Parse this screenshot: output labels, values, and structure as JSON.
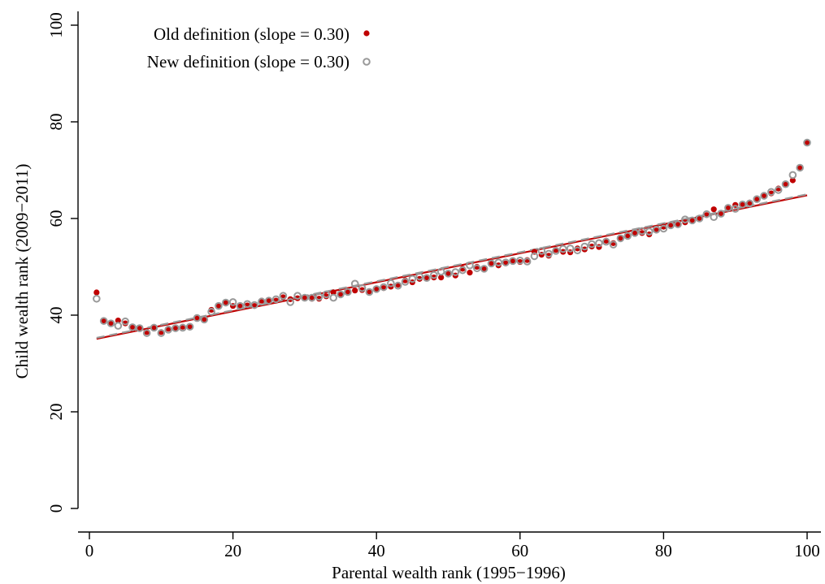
{
  "chart_data": {
    "type": "scatter",
    "title": "",
    "xlabel": "Parental wealth rank (1995−1996)",
    "ylabel": "Child wealth rank (2009−2011)",
    "xlim": [
      0,
      100
    ],
    "ylim": [
      0,
      100
    ],
    "xticks": [
      0,
      20,
      40,
      60,
      80,
      100
    ],
    "yticks": [
      0,
      20,
      40,
      60,
      80,
      100
    ],
    "xtick_labels": [
      "0",
      "20",
      "40",
      "60",
      "80",
      "100"
    ],
    "ytick_labels": [
      "0",
      "20",
      "40",
      "60",
      "80",
      "100"
    ],
    "grid": false,
    "legend_position": "top-left",
    "x": [
      1,
      2,
      3,
      4,
      5,
      6,
      7,
      8,
      9,
      10,
      11,
      12,
      13,
      14,
      15,
      16,
      17,
      18,
      19,
      20,
      21,
      22,
      23,
      24,
      25,
      26,
      27,
      28,
      29,
      30,
      31,
      32,
      33,
      34,
      35,
      36,
      37,
      38,
      39,
      40,
      41,
      42,
      43,
      44,
      45,
      46,
      47,
      48,
      49,
      50,
      51,
      52,
      53,
      54,
      55,
      56,
      57,
      58,
      59,
      60,
      61,
      62,
      63,
      64,
      65,
      66,
      67,
      68,
      69,
      70,
      71,
      72,
      73,
      74,
      75,
      76,
      77,
      78,
      79,
      80,
      81,
      82,
      83,
      84,
      85,
      86,
      87,
      88,
      89,
      90,
      91,
      92,
      93,
      94,
      95,
      96,
      97,
      98,
      99,
      100
    ],
    "series": [
      {
        "name": "Old definition (slope = 0.30)",
        "legend_label": "Old definition (slope = 0.30)",
        "marker": "filled-circle",
        "color": "#c00000",
        "fit_color": "#c00000",
        "fit": {
          "slope": 0.3,
          "intercept": 34.8
        },
        "values": [
          44.7,
          38.8,
          38.3,
          38.9,
          38.3,
          37.5,
          37.3,
          36.5,
          37.4,
          36.5,
          37.2,
          37.3,
          37.6,
          37.6,
          39.4,
          39.2,
          41.1,
          41.9,
          42.5,
          41.9,
          41.9,
          42.0,
          41.9,
          43.0,
          43.0,
          43.0,
          43.7,
          43.3,
          43.5,
          43.7,
          43.4,
          43.4,
          43.9,
          44.7,
          44.4,
          44.8,
          45.1,
          45.2,
          44.9,
          45.4,
          45.6,
          45.9,
          46.3,
          47.2,
          46.8,
          47.5,
          47.8,
          47.8,
          47.8,
          48.5,
          48.2,
          49.6,
          48.8,
          50.0,
          49.6,
          50.7,
          50.3,
          50.7,
          51.1,
          51.0,
          51.4,
          53.1,
          52.5,
          52.3,
          53.5,
          53.1,
          53.0,
          53.8,
          53.6,
          54.2,
          54.1,
          55.4,
          54.9,
          55.9,
          56.5,
          57.0,
          57.0,
          56.7,
          57.5,
          58.3,
          58.5,
          58.9,
          59.2,
          59.6,
          60.1,
          60.7,
          61.9,
          61.0,
          62.1,
          62.8,
          63.0,
          63.3,
          64.0,
          64.6,
          65.2,
          66.2,
          67.1,
          67.9,
          70.5,
          75.7
        ]
      },
      {
        "name": "New definition (slope = 0.30)",
        "legend_label": "New definition (slope = 0.30)",
        "marker": "hollow-circle",
        "color": "#999999",
        "fit_color": "#999999",
        "fit": {
          "slope": 0.3,
          "intercept": 35.0
        },
        "values": [
          43.4,
          38.8,
          38.3,
          37.8,
          38.7,
          37.5,
          37.3,
          36.3,
          37.4,
          36.3,
          37.0,
          37.3,
          37.4,
          37.6,
          39.4,
          39.1,
          40.7,
          41.9,
          42.6,
          42.7,
          41.9,
          42.3,
          42.1,
          42.8,
          43.0,
          43.3,
          44.0,
          42.7,
          44.0,
          43.6,
          43.6,
          43.8,
          44.3,
          43.6,
          44.3,
          44.8,
          46.5,
          45.6,
          44.8,
          45.4,
          45.8,
          46.6,
          46.1,
          46.9,
          47.5,
          48.0,
          47.7,
          48.3,
          49.0,
          48.6,
          48.9,
          49.3,
          50.3,
          49.7,
          49.6,
          50.7,
          50.9,
          50.9,
          51.2,
          51.3,
          51.1,
          52.2,
          53.3,
          52.7,
          53.3,
          53.7,
          53.8,
          53.4,
          54.2,
          54.7,
          54.9,
          55.2,
          54.6,
          55.9,
          56.4,
          57.0,
          57.4,
          57.3,
          57.7,
          57.9,
          58.6,
          58.8,
          59.8,
          59.6,
          60.0,
          60.9,
          60.3,
          61.0,
          62.2,
          62.0,
          62.9,
          63.1,
          64.0,
          64.7,
          65.5,
          65.9,
          67.1,
          69.0,
          70.5,
          75.7
        ]
      }
    ]
  }
}
